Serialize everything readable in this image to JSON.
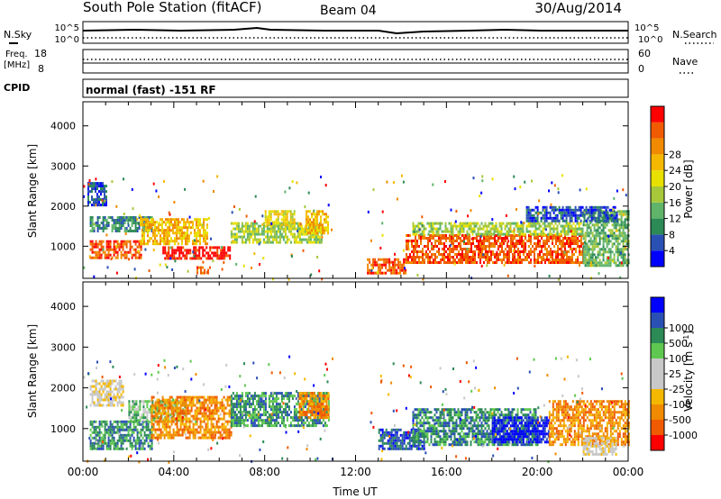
{
  "header": {
    "station": "South Pole Station (fitACF)",
    "beam": "Beam 04",
    "date": "30/Aug/2014"
  },
  "mini_panels": {
    "nsky_label": "N.Sky",
    "nsky_ticks": [
      "10^5",
      "10^0"
    ],
    "nsearch_label": "N.Search",
    "nsearch_ticks": [
      "10^5",
      "10^0"
    ],
    "freq_label_1": "Freq.",
    "freq_label_2": "[MHz]",
    "freq_ticks": [
      "18",
      "8"
    ],
    "nave_label": "Nave",
    "nave_ticks": [
      "60",
      "0"
    ],
    "cpid_label": "CPID",
    "cpid_text": "normal (fast) -151 RF"
  },
  "colors": {
    "power_scale": [
      "#0000ff",
      "#2a50b4",
      "#2c8a56",
      "#5fb46a",
      "#a6c83a",
      "#e8e000",
      "#f5b800",
      "#f08a00",
      "#f05a00",
      "#ff0000"
    ],
    "velocity_scale": [
      "#ff0000",
      "#f05a00",
      "#f08a00",
      "#f5b800",
      "#c8c8c8",
      "#c8c8c8",
      "#5fc850",
      "#2c8a56",
      "#2a50b4",
      "#0000ff"
    ]
  },
  "chart_data": [
    {
      "type": "heatmap",
      "panel": "power",
      "ylabel": "Slant Range [km]",
      "yticks": [
        1000,
        2000,
        3000,
        4000
      ],
      "ylim": [
        200,
        4600
      ],
      "xlim": [
        0,
        24
      ],
      "colorbar_label": "Power [dB]",
      "colorbar_ticks": [
        "4",
        "8",
        "12",
        "16",
        "20",
        "24",
        "28"
      ],
      "colorbar_range": [
        0,
        30
      ],
      "regions": [
        {
          "t": [
            0.3,
            2.6
          ],
          "r": [
            700,
            1150
          ],
          "level": 8
        },
        {
          "t": [
            0.3,
            3.0
          ],
          "r": [
            1400,
            1750
          ],
          "level": 2
        },
        {
          "t": [
            0.2,
            1.0
          ],
          "r": [
            2000,
            2600
          ],
          "level": 1
        },
        {
          "t": [
            2.5,
            5.5
          ],
          "r": [
            1050,
            1700
          ],
          "level": 6
        },
        {
          "t": [
            3.5,
            6.5
          ],
          "r": [
            700,
            1000
          ],
          "level": 9
        },
        {
          "t": [
            6.5,
            10.5
          ],
          "r": [
            1100,
            1600
          ],
          "level": 4
        },
        {
          "t": [
            8.0,
            9.3
          ],
          "r": [
            1500,
            1900
          ],
          "level": 5
        },
        {
          "t": [
            9.8,
            10.8
          ],
          "r": [
            1300,
            1900
          ],
          "level": 6
        },
        {
          "t": [
            5.0,
            5.6
          ],
          "r": [
            300,
            500
          ],
          "level": 8
        },
        {
          "t": [
            12.5,
            14.2
          ],
          "r": [
            300,
            700
          ],
          "level": 8
        },
        {
          "t": [
            14.2,
            22.0
          ],
          "r": [
            600,
            1300
          ],
          "level": 8
        },
        {
          "t": [
            14.5,
            22.0
          ],
          "r": [
            1300,
            1600
          ],
          "level": 4
        },
        {
          "t": [
            22.0,
            24.0
          ],
          "r": [
            500,
            1900
          ],
          "level": 3
        },
        {
          "t": [
            19.5,
            23.5
          ],
          "r": [
            1600,
            2000
          ],
          "level": 1
        }
      ]
    },
    {
      "type": "heatmap",
      "panel": "velocity",
      "ylabel": "Slant Range [km]",
      "xlabel": "Time UT",
      "xticks": [
        "00:00",
        "04:00",
        "08:00",
        "12:00",
        "16:00",
        "20:00",
        "00:00"
      ],
      "yticks": [
        1000,
        2000,
        3000,
        4000
      ],
      "ylim": [
        200,
        4600
      ],
      "xlim": [
        0,
        24
      ],
      "colorbar_label": "Velocity [m s^-1]",
      "colorbar_ticks": [
        "-1000",
        "-500",
        "-100",
        "-25",
        "25",
        "100",
        "500",
        "1000"
      ],
      "regions": [
        {
          "t": [
            0.3,
            3.0
          ],
          "r": [
            500,
            1200
          ],
          "level": 7
        },
        {
          "t": [
            0.3,
            1.8
          ],
          "r": [
            1600,
            2200
          ],
          "level": 4
        },
        {
          "t": [
            2.0,
            4.5
          ],
          "r": [
            1200,
            1700
          ],
          "level": 6
        },
        {
          "t": [
            3.0,
            6.5
          ],
          "r": [
            800,
            1800
          ],
          "level": 2
        },
        {
          "t": [
            6.5,
            10.8
          ],
          "r": [
            1100,
            1900
          ],
          "level": 7
        },
        {
          "t": [
            9.5,
            10.8
          ],
          "r": [
            1300,
            1900
          ],
          "level": 2
        },
        {
          "t": [
            13.0,
            15.0
          ],
          "r": [
            500,
            1000
          ],
          "level": 8
        },
        {
          "t": [
            14.5,
            20.0
          ],
          "r": [
            600,
            1500
          ],
          "level": 7
        },
        {
          "t": [
            18.0,
            20.5
          ],
          "r": [
            700,
            1300
          ],
          "level": 9
        },
        {
          "t": [
            20.5,
            24.0
          ],
          "r": [
            600,
            1700
          ],
          "level": 2
        },
        {
          "t": [
            22.0,
            23.5
          ],
          "r": [
            400,
            800
          ],
          "level": 4
        }
      ]
    }
  ]
}
